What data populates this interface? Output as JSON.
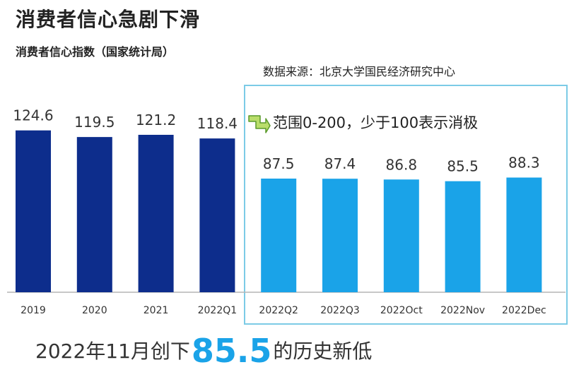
{
  "header": {
    "title": "消费者信心急剧下滑",
    "subtitle": "消费者信心指数（国家统计局）"
  },
  "source": "数据来源：北京大学国民经济研究中心",
  "note": "范围0-200，少于100表示消极",
  "footer": {
    "prefix": "2022年11月创下",
    "value": "85.5",
    "suffix": "的历史新低"
  },
  "colors": {
    "dark": "#0d2d8c",
    "light": "#1aa3e8",
    "box": "#7ccbe6"
  },
  "chart_data": {
    "type": "bar",
    "categories": [
      "2019",
      "2020",
      "2021",
      "2022Q1",
      "2022Q2",
      "2022Q3",
      "2022Oct",
      "2022Nov",
      "2022Dec"
    ],
    "values": [
      124.6,
      119.5,
      121.2,
      118.4,
      87.5,
      87.4,
      86.8,
      85.5,
      88.3
    ],
    "series_colors": [
      "dark",
      "dark",
      "dark",
      "dark",
      "light",
      "light",
      "light",
      "light",
      "light"
    ],
    "title": "消费者信心急剧下滑",
    "xlabel": "",
    "ylabel": "",
    "ylim": [
      0,
      130
    ],
    "grid": false,
    "data_labels": true
  }
}
